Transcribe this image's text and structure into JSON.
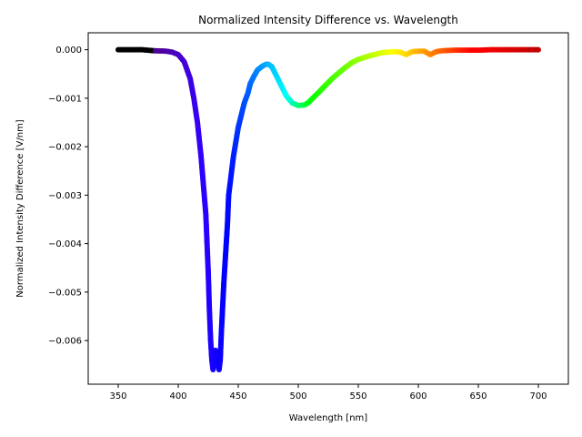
{
  "chart_data": {
    "type": "scatter",
    "title": "Normalized Intensity Difference vs. Wavelength",
    "xlabel": "Wavelength [nm]",
    "ylabel": "Normalized Intensity Difference [V/nm]",
    "xlim": [
      325,
      725
    ],
    "ylim": [
      -0.0069,
      0.00035
    ],
    "xticks": [
      350,
      400,
      450,
      500,
      550,
      600,
      650,
      700
    ],
    "yticks": [
      0.0,
      -0.001,
      -0.002,
      -0.003,
      -0.004,
      -0.005,
      -0.006
    ],
    "ytick_labels": [
      "0.000",
      "−0.001",
      "−0.002",
      "−0.003",
      "−0.004",
      "−0.005",
      "−0.006"
    ],
    "grid": false,
    "legend": "none",
    "marker_color": "wavelength-mapped spectrum (black below 380 nm, violet, blue, cyan, green, yellow, orange, red)",
    "series": [
      {
        "x": [
          350,
          360,
          370,
          380,
          390,
          395,
          400,
          405,
          410,
          413,
          416,
          419,
          421,
          423,
          424,
          425,
          426,
          427,
          428,
          429,
          430,
          431,
          432,
          433,
          434,
          435,
          436,
          437,
          438,
          439,
          440,
          441,
          442,
          444,
          446,
          448,
          450,
          452,
          455,
          458,
          460,
          463,
          466,
          470,
          473,
          475,
          478,
          480,
          483,
          486,
          490,
          495,
          500,
          505,
          508,
          512,
          517,
          522,
          528,
          535,
          540,
          545,
          550,
          555,
          560,
          565,
          570,
          575,
          580,
          585,
          590,
          595,
          600,
          605,
          610,
          615,
          620,
          630,
          640,
          650,
          660,
          670,
          680,
          690,
          700
        ],
        "y": [
          0.0,
          0.0,
          0.0,
          -2e-05,
          -3e-05,
          -5e-05,
          -0.0001,
          -0.00025,
          -0.0006,
          -0.001,
          -0.0015,
          -0.0022,
          -0.0028,
          -0.0034,
          -0.004,
          -0.0046,
          -0.0054,
          -0.006,
          -0.0064,
          -0.0066,
          -0.0063,
          -0.0062,
          -0.0065,
          -0.0064,
          -0.0066,
          -0.0064,
          -0.0058,
          -0.0053,
          -0.0048,
          -0.0044,
          -0.004,
          -0.0036,
          -0.003,
          -0.0026,
          -0.0022,
          -0.0019,
          -0.0016,
          -0.0014,
          -0.0011,
          -0.0009,
          -0.0007,
          -0.00055,
          -0.00042,
          -0.00034,
          -0.0003,
          -0.0003,
          -0.00035,
          -0.00045,
          -0.0006,
          -0.00075,
          -0.00095,
          -0.0011,
          -0.00115,
          -0.00114,
          -0.0011,
          -0.001,
          -0.00088,
          -0.00075,
          -0.0006,
          -0.00045,
          -0.00035,
          -0.00026,
          -0.0002,
          -0.00016,
          -0.00012,
          -9e-05,
          -6e-05,
          -5e-05,
          -4e-05,
          -5e-05,
          -0.0001,
          -4e-05,
          -3e-05,
          -3e-05,
          -0.0001,
          -4e-05,
          -2e-05,
          -1e-05,
          -1e-05,
          -1e-05,
          0.0,
          0.0,
          0.0,
          0.0,
          0.0
        ]
      }
    ]
  }
}
